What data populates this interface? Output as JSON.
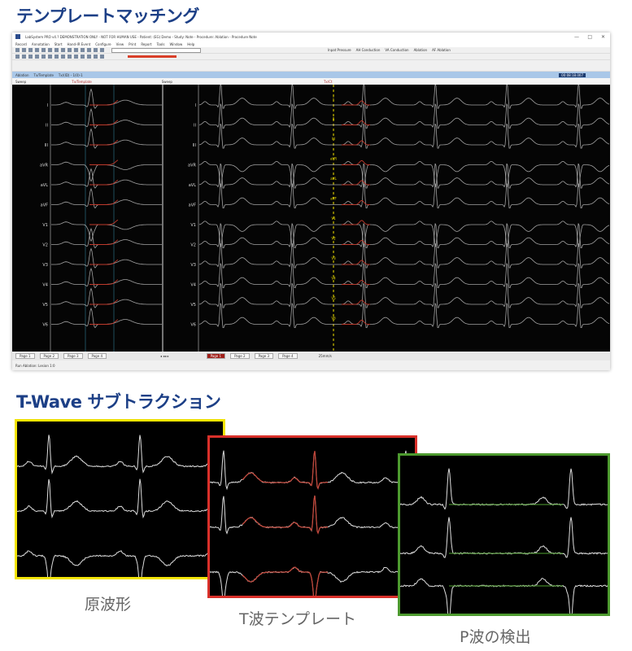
{
  "heading_template": "テンプレートマッチング",
  "heading_twave": "T-Wave サブトラクション",
  "window": {
    "title": "LabSystem PRO v4.? DEMONSTRATION ONLY - NOT FOR HUMAN USE - Patient: (EG) Demo - Study: Note - Procedure: Ablation - Procedure Note",
    "menu": [
      "Record",
      "Annotation",
      "Start",
      "Hand-IR Event",
      "Configure",
      "View",
      "Print",
      "Report",
      "Tools",
      "Window",
      "Help"
    ],
    "toolbar_right": [
      "Inpat Pressure",
      "AH Conduction",
      "VA Conduction",
      "Ablation",
      "AF Ablation"
    ],
    "blue_bar_text": [
      "Ablation",
      "Tx/Template",
      "Tx/(ID) - 1(0)-1"
    ],
    "clock": "00:08:18.007",
    "header_left": "Sweep",
    "header_left_marker": "Tx/Template",
    "header_right": "Sweep",
    "header_right_marker": "Tx/Ct",
    "tabs": [
      "Page 1",
      "Page 2",
      "Page 3",
      "Page 4"
    ],
    "tabs2": [
      "Page 1",
      "Page 2",
      "Page 3",
      "Page 4"
    ],
    "speed": "25mm/s",
    "status": "Run Ablation: Lesion 1:0"
  },
  "leads": [
    "I",
    "II",
    "III",
    "aVR",
    "aVL",
    "aVF",
    "V1",
    "V2",
    "V3",
    "V4",
    "V5",
    "V6"
  ],
  "colors": {
    "heading": "#1c3f86",
    "wave": "#c8c8c8",
    "template": "#c0392b",
    "yellow": "#f2e400",
    "red": "#d9302a",
    "green": "#4d9a2f"
  },
  "panels": [
    {
      "caption": "原波形",
      "border": "#f2e400"
    },
    {
      "caption": "T波テンプレート",
      "border": "#d9302a"
    },
    {
      "caption": "P波の検出",
      "border": "#4d9a2f"
    }
  ]
}
